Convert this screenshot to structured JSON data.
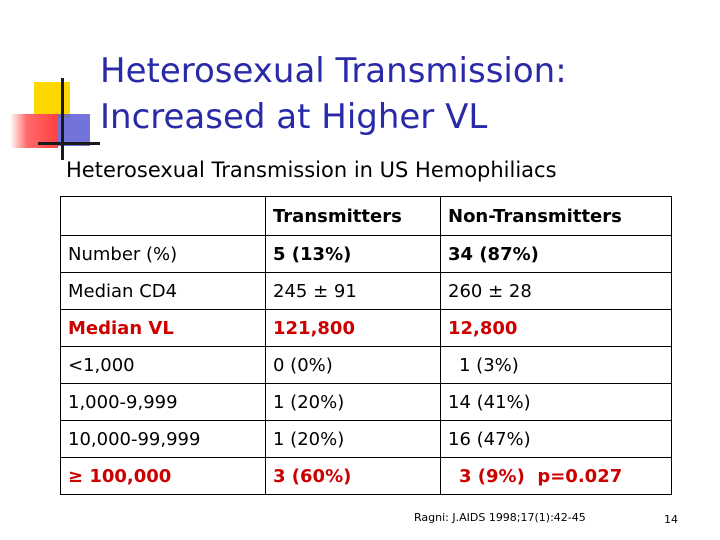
{
  "slide": {
    "title_line1": "Heterosexual Transmission:",
    "title_line2": "Increased at Higher VL",
    "subtitle": "Heterosexual Transmission in US Hemophiliacs",
    "colors": {
      "title": "#2a2aa8",
      "highlight_row": "#cc0000"
    }
  },
  "table": {
    "headers": [
      "",
      "Transmitters",
      "Non-Transmitters"
    ],
    "rows": [
      {
        "label": "Number (%)",
        "transmitters": "5 (13%)",
        "non_transmitters": "34 (87%)"
      },
      {
        "label": "Median CD4",
        "transmitters": "245 ± 91",
        "non_transmitters": "260 ± 28"
      },
      {
        "label": "Median VL",
        "transmitters": "121,800",
        "non_transmitters": "12,800"
      },
      {
        "label": "<1,000",
        "transmitters": "0 (0%)",
        "non_transmitters": "1 (3%)"
      },
      {
        "label": "1,000-9,999",
        "transmitters": "1 (20%)",
        "non_transmitters": "14 (41%)"
      },
      {
        "label": "10,000-99,999",
        "transmitters": "1 (20%)",
        "non_transmitters": "16 (47%)"
      },
      {
        "label": "≥ 100,000",
        "transmitters": "3 (60%)",
        "non_transmitters": "3 (9%)  p=0.027"
      }
    ]
  },
  "footer": {
    "citation": "Ragni: J.AIDS 1998;17(1):42-45",
    "page_number": "14"
  }
}
